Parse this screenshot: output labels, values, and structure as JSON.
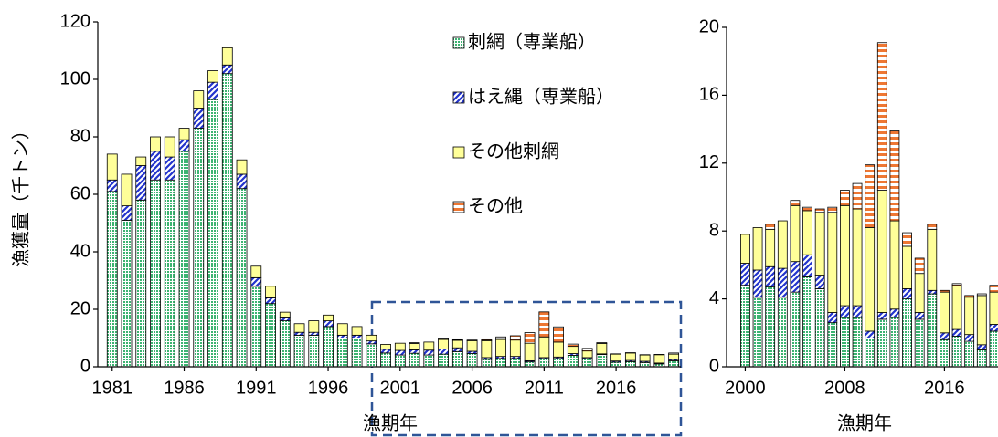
{
  "chart_data": [
    {
      "type": "bar",
      "stacked": true,
      "y_label": "漁獲量（千トン）",
      "x_label": "漁期年",
      "x": [
        1981,
        1982,
        1983,
        1984,
        1985,
        1986,
        1987,
        1988,
        1989,
        1990,
        1991,
        1992,
        1993,
        1994,
        1995,
        1996,
        1997,
        1998,
        1999,
        2000,
        2001,
        2002,
        2003,
        2004,
        2005,
        2006,
        2007,
        2008,
        2009,
        2010,
        2011,
        2012,
        2013,
        2014,
        2015,
        2016,
        2017,
        2018,
        2019,
        2020
      ],
      "xlim": [
        1980,
        2020.5
      ],
      "xticks": [
        1981,
        1986,
        1991,
        1996,
        2001,
        2006,
        2011,
        2016
      ],
      "ylim": [
        0,
        120
      ],
      "yticks": [
        0,
        20,
        40,
        60,
        80,
        100,
        120
      ],
      "legend": "top-center",
      "series": [
        {
          "name": "刺網（専業船）",
          "color": "#3cb371",
          "values": [
            61,
            51,
            58,
            65,
            65,
            75,
            83,
            93,
            102,
            62,
            28,
            22,
            16,
            11,
            11,
            14,
            10,
            10,
            8,
            4.8,
            4.1,
            4.7,
            4.1,
            4.4,
            5.3,
            4.6,
            2.6,
            2.9,
            2.9,
            1.7,
            2.8,
            2.9,
            4.0,
            2.8,
            4.3,
            1.6,
            1.8,
            1.5,
            1.0,
            2.1
          ]
        },
        {
          "name": "はえ縄（専業船）",
          "color": "#2233cc",
          "values": [
            4,
            5,
            12,
            10,
            8,
            4,
            7,
            6,
            3,
            5,
            3,
            2,
            1,
            1,
            1,
            2,
            1,
            1,
            1,
            1.3,
            1.6,
            1.2,
            1.7,
            1.8,
            1.3,
            0.8,
            0.6,
            0.7,
            0.7,
            0.4,
            0.4,
            0.5,
            0.6,
            0.4,
            0.2,
            0.4,
            0.4,
            0.4,
            0.3,
            0.4
          ]
        },
        {
          "name": "その他刺網",
          "color": "#ffff99",
          "values": [
            9,
            11,
            3,
            5,
            7,
            4,
            6,
            4,
            6,
            5,
            4,
            4,
            2,
            3,
            4,
            2,
            4,
            3,
            2,
            1.7,
            2.5,
            2.2,
            2.8,
            3.3,
            2.6,
            3.7,
            5.9,
            5.9,
            5.7,
            6.1,
            7.2,
            5.2,
            2.5,
            2.3,
            3.6,
            2.4,
            2.6,
            2.2,
            2.9,
            1.9
          ]
        },
        {
          "name": "その他",
          "color": "#ee7733",
          "values": [
            0,
            0,
            0,
            0,
            0,
            0,
            0,
            0,
            0,
            0,
            0,
            0,
            0,
            0,
            0,
            0,
            0,
            0,
            0,
            0,
            0,
            0.3,
            0,
            0.3,
            0.2,
            0.2,
            0.3,
            0.9,
            1.5,
            3.7,
            8.7,
            5.3,
            0.8,
            0.9,
            0.3,
            0.1,
            0.1,
            0.1,
            0.1,
            0.4
          ]
        }
      ]
    },
    {
      "type": "bar",
      "stacked": true,
      "x_label": "漁期年",
      "x": [
        2000,
        2001,
        2002,
        2003,
        2004,
        2005,
        2006,
        2007,
        2008,
        2009,
        2010,
        2011,
        2012,
        2013,
        2014,
        2015,
        2016,
        2017,
        2018,
        2019,
        2020
      ],
      "xlim": [
        1998.5,
        2020.3
      ],
      "xticks": [
        2000,
        2008,
        2016
      ],
      "ylim": [
        0,
        20
      ],
      "yticks": [
        0,
        4,
        8,
        12,
        16,
        20
      ],
      "series": [
        {
          "color": "#3cb371",
          "values": [
            4.8,
            4.1,
            4.7,
            4.1,
            4.4,
            5.3,
            4.6,
            2.6,
            2.9,
            2.9,
            1.7,
            2.8,
            2.9,
            4.0,
            2.8,
            4.3,
            1.6,
            1.8,
            1.5,
            1.0,
            2.1
          ]
        },
        {
          "color": "#2233cc",
          "values": [
            1.3,
            1.6,
            1.2,
            1.7,
            1.8,
            1.3,
            0.8,
            0.6,
            0.7,
            0.7,
            0.4,
            0.4,
            0.5,
            0.6,
            0.4,
            0.2,
            0.4,
            0.4,
            0.4,
            0.3,
            0.4
          ]
        },
        {
          "color": "#ffff99",
          "values": [
            1.7,
            2.5,
            2.2,
            2.8,
            3.3,
            2.6,
            3.7,
            5.9,
            5.9,
            5.7,
            6.1,
            7.2,
            5.2,
            2.5,
            2.3,
            3.6,
            2.4,
            2.6,
            2.2,
            2.9,
            1.9
          ]
        },
        {
          "color": "#ee7733",
          "values": [
            0,
            0,
            0.3,
            0,
            0.3,
            0.2,
            0.2,
            0.3,
            0.9,
            1.5,
            3.7,
            8.7,
            5.3,
            0.8,
            0.9,
            0.3,
            0.1,
            0.1,
            0.1,
            0.1,
            0.4
          ]
        }
      ]
    }
  ]
}
